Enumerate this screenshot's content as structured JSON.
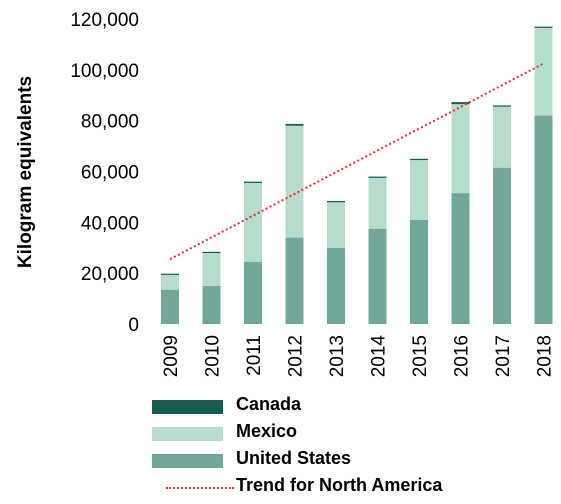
{
  "chart_data": {
    "type": "bar",
    "stacked": true,
    "categories": [
      "2009",
      "2010",
      "2011",
      "2012",
      "2013",
      "2014",
      "2015",
      "2016",
      "2017",
      "2018"
    ],
    "series": [
      {
        "name": "United States",
        "color": "#72a899",
        "values": [
          13500,
          15000,
          24500,
          34000,
          30000,
          37500,
          41000,
          51500,
          61500,
          82000
        ]
      },
      {
        "name": "Mexico",
        "color": "#b6dccb",
        "values": [
          6000,
          13000,
          31000,
          44000,
          18000,
          20000,
          23500,
          35000,
          24000,
          34500
        ]
      },
      {
        "name": "Canada",
        "color": "#125e50",
        "values": [
          300,
          400,
          500,
          700,
          400,
          500,
          500,
          800,
          500,
          500
        ]
      }
    ],
    "trend": {
      "name": "Trend for North America",
      "color": "#e0303a",
      "start": 25500,
      "end": 102500
    },
    "ylabel": "Kilogram equivalents",
    "ylim": [
      0,
      120000
    ],
    "yticks": [
      0,
      20000,
      40000,
      60000,
      80000,
      100000,
      120000
    ],
    "ytick_labels": [
      "0",
      "20,000",
      "40,000",
      "60,000",
      "80,000",
      "100,000",
      "120,000"
    ],
    "grid": false,
    "legend_position": "bottom"
  },
  "legend": {
    "canada": "Canada",
    "mexico": "Mexico",
    "united_states": "United States",
    "trend": "Trend for North America"
  }
}
